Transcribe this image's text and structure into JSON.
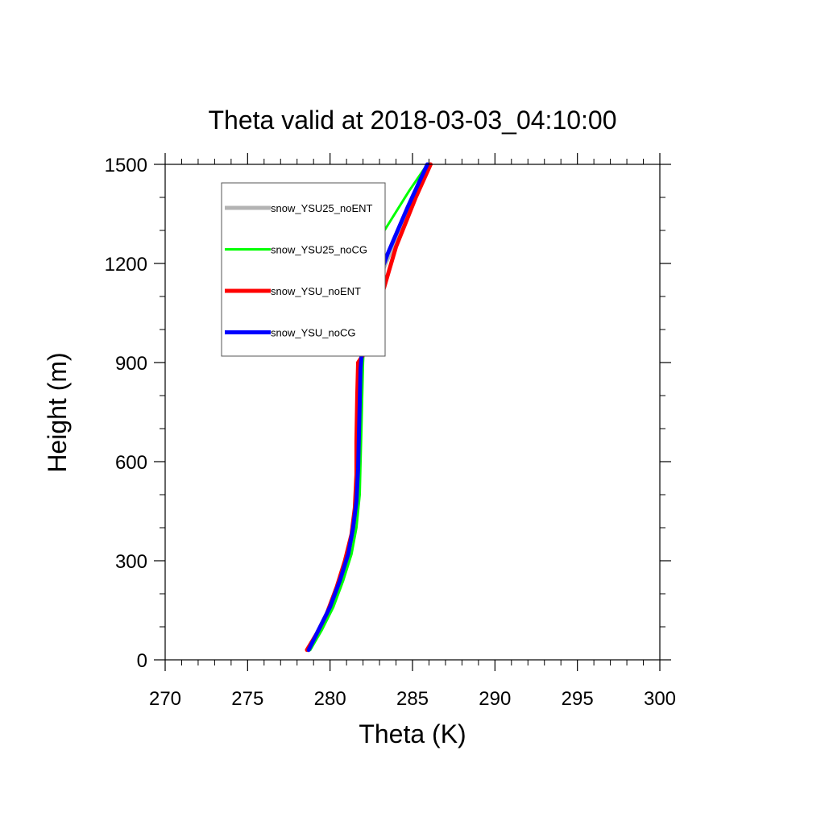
{
  "chart_data": {
    "type": "line",
    "title": "Theta valid at 2018-03-03_04:10:00",
    "xlabel": "Theta (K)",
    "ylabel": "Height (m)",
    "xlim": [
      270,
      300
    ],
    "ylim": [
      0,
      1500
    ],
    "xticks": [
      270,
      275,
      280,
      285,
      290,
      295,
      300
    ],
    "yticks": [
      0,
      300,
      600,
      900,
      1200,
      1500
    ],
    "xtick_labels": [
      "270",
      "275",
      "280",
      "285",
      "290",
      "295",
      "300"
    ],
    "ytick_labels": [
      "0",
      "300",
      "600",
      "900",
      "1200",
      "1500"
    ],
    "grid": false,
    "legend_position": "top-left",
    "series": [
      {
        "name": "snow_YSU25_noENT",
        "color": "#b3b3b3",
        "thickness": "thick",
        "points": [
          [
            278.7,
            30
          ],
          [
            279.3,
            80
          ],
          [
            280.0,
            150
          ],
          [
            280.6,
            220
          ],
          [
            281.1,
            300
          ],
          [
            281.4,
            380
          ],
          [
            281.6,
            450
          ],
          [
            281.7,
            550
          ],
          [
            281.75,
            650
          ],
          [
            281.8,
            750
          ],
          [
            281.85,
            850
          ],
          [
            281.95,
            930
          ],
          [
            282.1,
            1000
          ],
          [
            282.4,
            1060
          ],
          [
            283.2,
            1180
          ],
          [
            284.4,
            1320
          ],
          [
            286.0,
            1500
          ]
        ]
      },
      {
        "name": "snow_YSU25_noCG",
        "color": "#00ff00",
        "thickness": "thin",
        "points": [
          [
            278.8,
            30
          ],
          [
            279.5,
            90
          ],
          [
            280.2,
            160
          ],
          [
            280.8,
            240
          ],
          [
            281.3,
            320
          ],
          [
            281.6,
            400
          ],
          [
            281.8,
            500
          ],
          [
            281.85,
            600
          ],
          [
            281.9,
            700
          ],
          [
            281.95,
            800
          ],
          [
            282.0,
            900
          ],
          [
            282.1,
            1000
          ],
          [
            282.3,
            1100
          ],
          [
            282.5,
            1200
          ],
          [
            283.3,
            1300
          ],
          [
            284.8,
            1420
          ],
          [
            285.9,
            1500
          ]
        ]
      },
      {
        "name": "snow_YSU_noENT",
        "color": "#ff0000",
        "thickness": "thick",
        "points": [
          [
            278.6,
            30
          ],
          [
            279.2,
            80
          ],
          [
            279.8,
            140
          ],
          [
            280.4,
            220
          ],
          [
            280.9,
            300
          ],
          [
            281.3,
            380
          ],
          [
            281.5,
            460
          ],
          [
            281.6,
            560
          ],
          [
            281.6,
            660
          ],
          [
            281.65,
            800
          ],
          [
            281.7,
            900
          ],
          [
            282.1,
            930
          ],
          [
            282.6,
            990
          ],
          [
            283.0,
            1080
          ],
          [
            284.0,
            1250
          ],
          [
            285.2,
            1400
          ],
          [
            286.1,
            1500
          ]
        ]
      },
      {
        "name": "snow_YSU_noCG",
        "color": "#0000ff",
        "thickness": "thick",
        "points": [
          [
            278.7,
            30
          ],
          [
            279.3,
            90
          ],
          [
            280.0,
            160
          ],
          [
            280.6,
            240
          ],
          [
            281.1,
            320
          ],
          [
            281.4,
            400
          ],
          [
            281.6,
            480
          ],
          [
            281.7,
            580
          ],
          [
            281.75,
            680
          ],
          [
            281.8,
            780
          ],
          [
            281.85,
            880
          ],
          [
            282.0,
            980
          ],
          [
            282.3,
            1060
          ],
          [
            282.7,
            1120
          ],
          [
            283.5,
            1230
          ],
          [
            284.7,
            1370
          ],
          [
            285.9,
            1500
          ]
        ]
      }
    ]
  }
}
